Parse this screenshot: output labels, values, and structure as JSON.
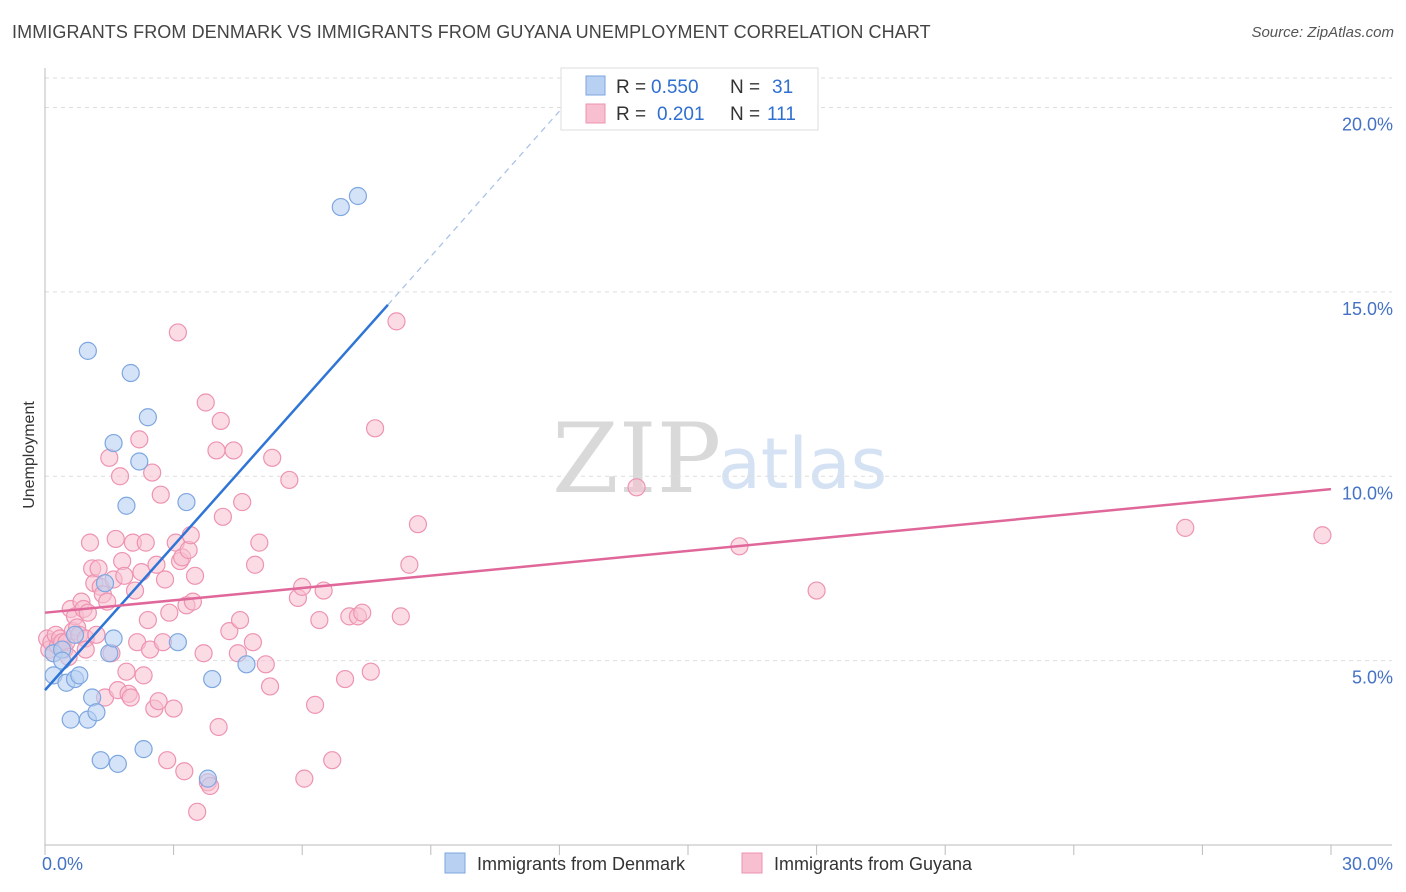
{
  "title": "IMMIGRANTS FROM DENMARK VS IMMIGRANTS FROM GUYANA UNEMPLOYMENT CORRELATION CHART",
  "source": "Source: ZipAtlas.com",
  "watermark": {
    "zip": "ZIP",
    "atlas": "atlas"
  },
  "colors": {
    "blue_fill": "#b8d0f2",
    "blue_stroke": "#7ea6e0",
    "blue_line": "#2e75d6",
    "pink_fill": "#f7bfd0",
    "pink_stroke": "#ee93b1",
    "pink_line": "#e0679a",
    "grid": "#dddddd",
    "axis_label": "#4472c4"
  },
  "legend": {
    "r_label": "R =",
    "n_label": "N =",
    "rows": [
      {
        "r": "0.550",
        "n": "31"
      },
      {
        "r": "0.201",
        "n": "111"
      }
    ]
  },
  "chart_data": {
    "type": "scatter",
    "title": "IMMIGRANTS FROM DENMARK VS IMMIGRANTS FROM GUYANA UNEMPLOYMENT CORRELATION CHART",
    "xlabel": "",
    "ylabel": "Unemployment",
    "xlim": [
      0,
      30
    ],
    "ylim": [
      0,
      20.8
    ],
    "x_tick_labels": [
      "0.0%",
      "30.0%"
    ],
    "y_ticks": [
      5,
      10,
      15,
      20
    ],
    "y_tick_labels": [
      "5.0%",
      "10.0%",
      "15.0%",
      "20.0%"
    ],
    "grid": true,
    "legend_position": "top-center",
    "series": [
      {
        "name": "Immigrants from Denmark",
        "color": "blue",
        "r": 0.55,
        "n": 31,
        "trend": {
          "x0": 0.0,
          "y0": 4.2,
          "x1": 8.0,
          "y1": 14.65,
          "dashed_to_x": 12.0,
          "dashed_to_y": 19.9
        },
        "points": [
          [
            0.2,
            5.2
          ],
          [
            0.2,
            4.6
          ],
          [
            0.4,
            5.3
          ],
          [
            0.4,
            5.0
          ],
          [
            0.5,
            4.4
          ],
          [
            0.6,
            3.4
          ],
          [
            0.7,
            5.7
          ],
          [
            0.7,
            4.5
          ],
          [
            0.8,
            4.6
          ],
          [
            1.0,
            3.4
          ],
          [
            1.0,
            13.4
          ],
          [
            1.1,
            4.0
          ],
          [
            1.2,
            3.6
          ],
          [
            1.3,
            2.3
          ],
          [
            1.4,
            7.1
          ],
          [
            1.5,
            5.2
          ],
          [
            1.6,
            5.6
          ],
          [
            1.6,
            10.9
          ],
          [
            1.7,
            2.2
          ],
          [
            1.9,
            9.2
          ],
          [
            2.0,
            12.8
          ],
          [
            2.2,
            10.4
          ],
          [
            2.3,
            2.6
          ],
          [
            2.4,
            11.6
          ],
          [
            3.1,
            5.5
          ],
          [
            3.3,
            9.3
          ],
          [
            3.8,
            1.8
          ],
          [
            3.9,
            4.5
          ],
          [
            4.7,
            4.9
          ],
          [
            6.9,
            17.3
          ],
          [
            7.3,
            17.6
          ]
        ]
      },
      {
        "name": "Immigrants from Guyana",
        "color": "pink",
        "r": 0.201,
        "n": 111,
        "trend": {
          "x0": 0.0,
          "y0": 6.3,
          "x1": 30.0,
          "y1": 9.65
        },
        "points": [
          [
            0.05,
            5.6
          ],
          [
            0.1,
            5.3
          ],
          [
            0.15,
            5.5
          ],
          [
            0.2,
            5.2
          ],
          [
            0.25,
            5.7
          ],
          [
            0.3,
            5.4
          ],
          [
            0.35,
            5.6
          ],
          [
            0.4,
            5.5
          ],
          [
            0.45,
            5.3
          ],
          [
            0.5,
            5.5
          ],
          [
            0.55,
            5.1
          ],
          [
            0.6,
            6.4
          ],
          [
            0.65,
            5.8
          ],
          [
            0.7,
            6.2
          ],
          [
            0.75,
            5.9
          ],
          [
            0.8,
            5.7
          ],
          [
            0.85,
            6.6
          ],
          [
            0.9,
            6.4
          ],
          [
            0.95,
            5.6
          ],
          [
            1.0,
            6.3
          ],
          [
            1.05,
            8.2
          ],
          [
            1.1,
            7.5
          ],
          [
            1.15,
            7.1
          ],
          [
            1.2,
            5.7
          ],
          [
            1.25,
            7.5
          ],
          [
            1.3,
            7.0
          ],
          [
            1.35,
            6.8
          ],
          [
            1.4,
            4.0
          ],
          [
            1.45,
            6.6
          ],
          [
            1.5,
            10.5
          ],
          [
            1.55,
            5.2
          ],
          [
            1.6,
            7.2
          ],
          [
            1.65,
            8.3
          ],
          [
            1.7,
            4.2
          ],
          [
            1.75,
            10.0
          ],
          [
            1.8,
            7.7
          ],
          [
            1.85,
            7.3
          ],
          [
            1.9,
            4.7
          ],
          [
            1.95,
            4.1
          ],
          [
            2.0,
            4.0
          ],
          [
            2.05,
            8.2
          ],
          [
            2.1,
            6.9
          ],
          [
            2.15,
            5.5
          ],
          [
            2.2,
            11.0
          ],
          [
            2.25,
            7.4
          ],
          [
            2.3,
            4.6
          ],
          [
            2.35,
            8.2
          ],
          [
            2.4,
            6.1
          ],
          [
            2.45,
            5.3
          ],
          [
            2.5,
            10.1
          ],
          [
            2.55,
            3.7
          ],
          [
            2.6,
            7.6
          ],
          [
            2.65,
            3.9
          ],
          [
            2.7,
            9.5
          ],
          [
            2.75,
            5.5
          ],
          [
            2.8,
            7.2
          ],
          [
            2.85,
            2.3
          ],
          [
            2.9,
            6.3
          ],
          [
            3.0,
            3.7
          ],
          [
            3.05,
            8.2
          ],
          [
            3.1,
            13.9
          ],
          [
            3.15,
            7.7
          ],
          [
            3.2,
            7.8
          ],
          [
            3.25,
            2.0
          ],
          [
            3.3,
            6.5
          ],
          [
            3.35,
            8.0
          ],
          [
            3.4,
            8.4
          ],
          [
            3.45,
            6.6
          ],
          [
            3.5,
            7.3
          ],
          [
            3.55,
            0.9
          ],
          [
            3.7,
            5.2
          ],
          [
            3.75,
            12.0
          ],
          [
            3.8,
            1.7
          ],
          [
            3.85,
            1.6
          ],
          [
            4.0,
            10.7
          ],
          [
            4.05,
            3.2
          ],
          [
            4.1,
            11.5
          ],
          [
            4.15,
            8.9
          ],
          [
            4.3,
            5.8
          ],
          [
            4.4,
            10.7
          ],
          [
            4.5,
            5.2
          ],
          [
            4.55,
            6.1
          ],
          [
            4.6,
            9.3
          ],
          [
            4.85,
            5.5
          ],
          [
            4.9,
            7.6
          ],
          [
            5.0,
            8.2
          ],
          [
            5.15,
            4.9
          ],
          [
            5.25,
            4.3
          ],
          [
            5.3,
            10.5
          ],
          [
            5.7,
            9.9
          ],
          [
            5.9,
            6.7
          ],
          [
            6.0,
            7.0
          ],
          [
            6.05,
            1.8
          ],
          [
            6.3,
            3.8
          ],
          [
            6.4,
            6.1
          ],
          [
            6.5,
            6.9
          ],
          [
            6.7,
            2.3
          ],
          [
            7.0,
            4.5
          ],
          [
            7.1,
            6.2
          ],
          [
            7.3,
            6.2
          ],
          [
            7.4,
            6.3
          ],
          [
            7.6,
            4.7
          ],
          [
            7.7,
            11.3
          ],
          [
            8.2,
            14.2
          ],
          [
            8.3,
            6.2
          ],
          [
            8.5,
            7.6
          ],
          [
            8.7,
            8.7
          ],
          [
            13.8,
            9.7
          ],
          [
            16.2,
            8.1
          ],
          [
            18.0,
            6.9
          ],
          [
            26.6,
            8.6
          ],
          [
            29.8,
            8.4
          ],
          [
            0.95,
            5.3
          ]
        ]
      }
    ]
  },
  "bottom_legend": [
    "Immigrants from Denmark",
    "Immigrants from Guyana"
  ]
}
